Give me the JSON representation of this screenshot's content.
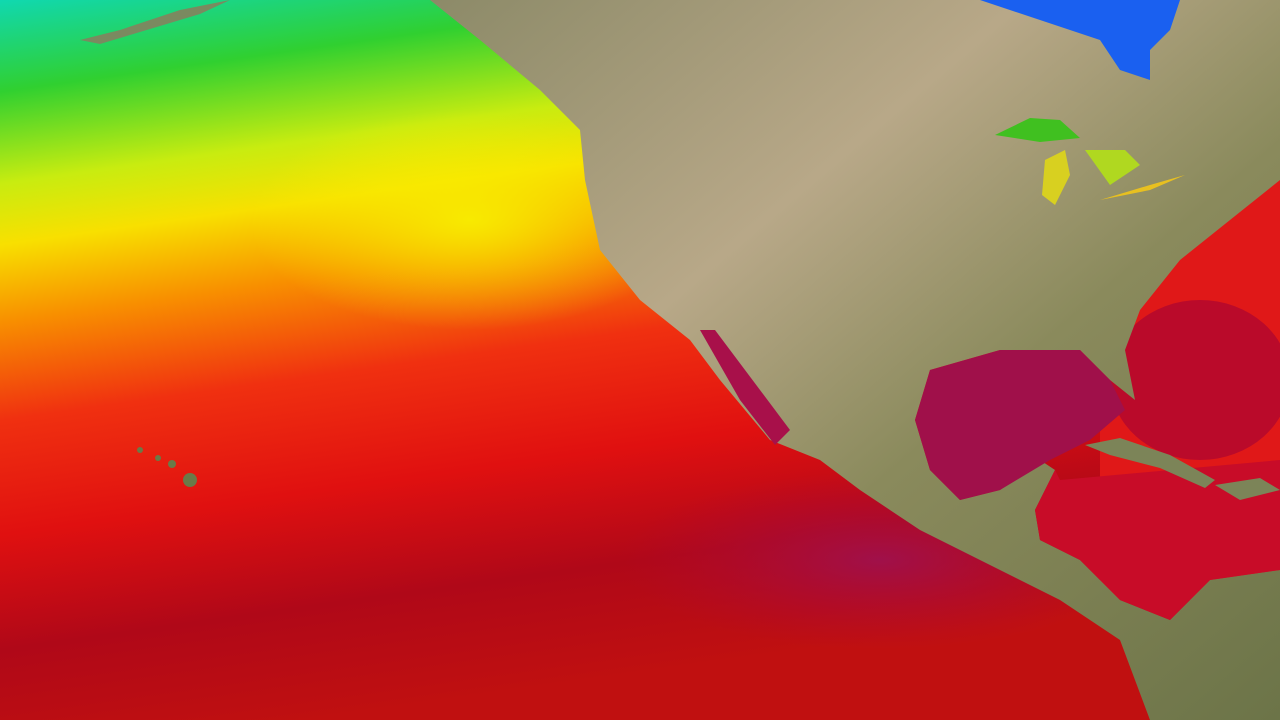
{
  "map": {
    "kind": "sea-surface-temperature",
    "colors": {
      "cold": "#10d8b0",
      "cool": "#30d020",
      "mild": "#f0f000",
      "warm": "#f08000",
      "hot": "#f01010",
      "hotter": "#b00818",
      "hottest": "#a0104a",
      "land": "#a09a70",
      "land_dark": "#7a7c50",
      "lake_cold": "#1050f0",
      "lake_warm": "#d0e020"
    }
  }
}
